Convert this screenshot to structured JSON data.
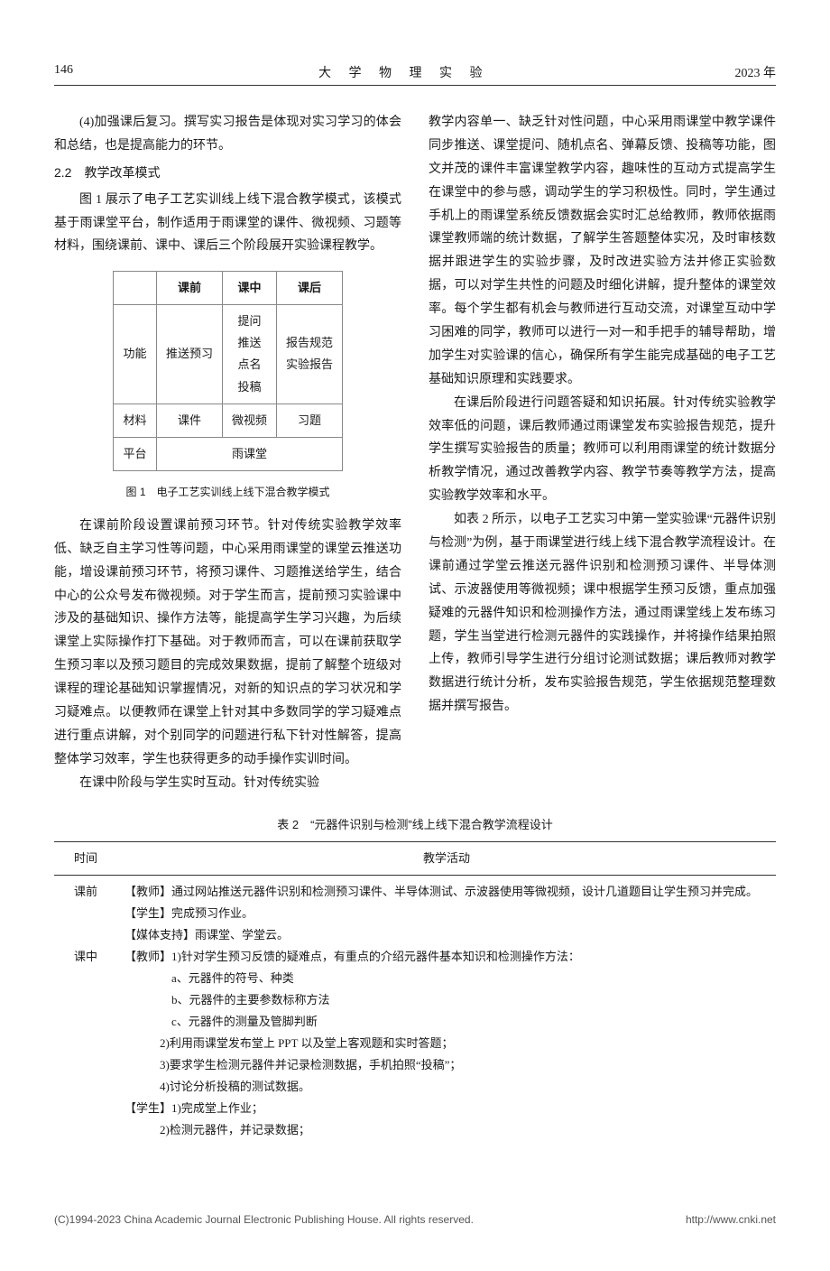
{
  "header": {
    "page": "146",
    "journal": "大 学 物 理 实 验",
    "year": "2023 年"
  },
  "section_2_2": "2.2　教学改革模式",
  "left": {
    "p_intro4": "(4)加强课后复习。撰写实习报告是体现对实习学习的体会和总结，也是提高能力的环节。",
    "p1": "图 1 展示了电子工艺实训线上线下混合教学模式，该模式基于雨课堂平台，制作适用于雨课堂的课件、微视频、习题等材料，围绕课前、课中、课后三个阶段展开实验课程教学。",
    "p2": "在课前阶段设置课前预习环节。针对传统实验教学效率低、缺乏自主学习性等问题，中心采用雨课堂的课堂云推送功能，增设课前预习环节，将预习课件、习题推送给学生，结合中心的公众号发布微视频。对于学生而言，提前预习实验课中涉及的基础知识、操作方法等，能提高学生学习兴趣，为后续课堂上实际操作打下基础。对于教师而言，可以在课前获取学生预习率以及预习题目的完成效果数据，提前了解整个班级对课程的理论基础知识掌握情况，对新的知识点的学习状况和学习疑难点。以便教师在课堂上针对其中多数同学的学习疑难点进行重点讲解，对个别同学的问题进行私下针对性解答，提高整体学习效率，学生也获得更多的动手操作实训时间。",
    "p3": "在课中阶段与学生实时互动。针对传统实验"
  },
  "right": {
    "p1": "教学内容单一、缺乏针对性问题，中心采用雨课堂中教学课件同步推送、课堂提问、随机点名、弹幕反馈、投稿等功能，图文并茂的课件丰富课堂教学内容，趣味性的互动方式提高学生在课堂中的参与感，调动学生的学习积极性。同时，学生通过手机上的雨课堂系统反馈数据会实时汇总给教师，教师依据雨课堂教师端的统计数据，了解学生答题整体实况，及时审核数据并跟进学生的实验步骤，及时改进实验方法并修正实验数据，可以对学生共性的问题及时细化讲解，提升整体的课堂效率。每个学生都有机会与教师进行互动交流，对课堂互动中学习困难的同学，教师可以进行一对一和手把手的辅导帮助，增加学生对实验课的信心，确保所有学生能完成基础的电子工艺基础知识原理和实践要求。",
    "p2": "在课后阶段进行问题答疑和知识拓展。针对传统实验教学效率低的问题，课后教师通过雨课堂发布实验报告规范，提升学生撰写实验报告的质量；教师可以利用雨课堂的统计数据分析教学情况，通过改善教学内容、教学节奏等教学方法，提高实验教学效率和水平。",
    "p3": "如表 2 所示，以电子工艺实习中第一堂实验课“元器件识别与检测”为例，基于雨课堂进行线上线下混合教学流程设计。在课前通过学堂云推送元器件识别和检测预习课件、半导体测试、示波器使用等微视频；课中根据学生预习反馈，重点加强疑难的元器件知识和检测操作方法，通过雨课堂线上发布练习题，学生当堂进行检测元器件的实践操作，并将操作结果拍照上传，教师引导学生进行分组讨论测试数据；课后教师对教学数据进行统计分析，发布实验报告规范，学生依据规范整理数据并撰写报告。"
  },
  "figure1": {
    "caption": "图 1　电子工艺实训线上线下混合教学模式",
    "cols": [
      "课前",
      "课中",
      "课后"
    ],
    "rows": {
      "功能": {
        "label": "功能",
        "cells": [
          "推送预习",
          "提问\n推送\n点名\n投稿",
          "报告规范\n实验报告"
        ]
      },
      "材料": {
        "label": "材料",
        "cells": [
          "课件",
          "微视频",
          "习题"
        ]
      },
      "平台": {
        "label": "平台",
        "span": "雨课堂"
      }
    }
  },
  "table2": {
    "caption": "表 2　“元器件识别与检测”线上线下混合教学流程设计",
    "headers": [
      "时间",
      "教学活动"
    ],
    "rows": [
      {
        "time": "课前",
        "lines": [
          "【教师】通过网站推送元器件识别和检测预习课件、半导体测试、示波器使用等微视频，设计几道题目让学生预习并完成。",
          "【学生】完成预习作业。",
          "【媒体支持】雨课堂、学堂云。"
        ]
      },
      {
        "time": "课中",
        "lines": [
          "【教师】1)针对学生预习反馈的疑难点，有重点的介绍元器件基本知识和检测操作方法：",
          "　　　　a、元器件的符号、种类",
          "　　　　b、元器件的主要参数标称方法",
          "　　　　c、元器件的测量及管脚判断",
          "　　　2)利用雨课堂发布堂上 PPT 以及堂上客观题和实时答题；",
          "　　　3)要求学生检测元器件并记录检测数据，手机拍照“投稿”；",
          "　　　4)讨论分析投稿的测试数据。",
          "【学生】1)完成堂上作业；",
          "　　　2)检测元器件，并记录数据；"
        ]
      }
    ]
  },
  "footer": {
    "left": "(C)1994-2023 China Academic Journal Electronic Publishing House. All rights reserved.",
    "right": "http://www.cnki.net"
  }
}
